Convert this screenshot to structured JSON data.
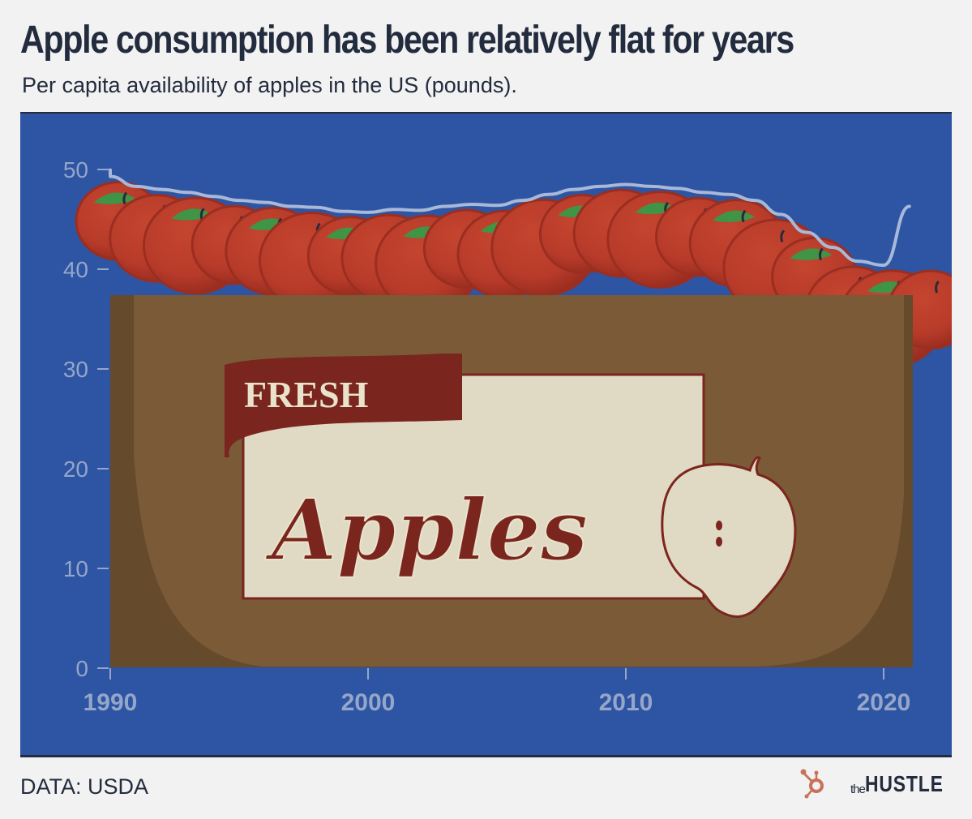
{
  "header": {
    "title": "Apple consumption has been relatively flat for years",
    "subtitle": "Per capita availability of apples in the US (pounds)."
  },
  "footer": {
    "source": "DATA: USDA",
    "brand_prefix": "the",
    "brand_name": "HUSTLE",
    "brand_icon": "hubspot-sprocket-icon"
  },
  "illustration": {
    "banner_text": "FRESH",
    "label_text": "Apples",
    "description": "Crate of red apples with green leaves; line traces top of pile"
  },
  "colors": {
    "background": "#f1f2f1",
    "plot_background": "#2d55a3",
    "line": "#a8b8d8",
    "axis_text": "#95a6c9",
    "title_text": "#232b3e",
    "crate": "#7a5a37",
    "crate_shadow": "#664a2c",
    "apple": "#b83b2a",
    "apple_shadow": "#9b2e20",
    "leaf": "#3f9446",
    "label_bg": "#e0dac4",
    "label_red": "#7a251d",
    "brand_orange": "#c9725a"
  },
  "chart_data": {
    "type": "line",
    "title": "Apple consumption has been relatively flat for years",
    "subtitle": "Per capita availability of apples in the US (pounds).",
    "xlabel": "",
    "ylabel": "",
    "x": [
      1990,
      1991,
      1992,
      1993,
      1994,
      1995,
      1996,
      1997,
      1998,
      1999,
      2000,
      2001,
      2002,
      2003,
      2004,
      2005,
      2006,
      2007,
      2008,
      2009,
      2010,
      2011,
      2012,
      2013,
      2014,
      2015,
      2016,
      2017,
      2018,
      2019,
      2020,
      2021
    ],
    "series": [
      {
        "name": "Per capita apple availability (lbs)",
        "values": [
          49.3,
          48.3,
          48.0,
          47.7,
          47.3,
          46.9,
          46.7,
          46.3,
          46.2,
          45.8,
          45.7,
          46.0,
          45.9,
          46.3,
          46.5,
          46.4,
          46.9,
          47.5,
          48.0,
          48.3,
          48.5,
          48.3,
          48.1,
          47.7,
          47.5,
          46.9,
          45.5,
          43.7,
          42.2,
          40.8,
          40.4,
          46.3
        ]
      }
    ],
    "x_ticks": [
      "1990",
      "2000",
      "2010",
      "2020"
    ],
    "y_ticks": [
      "0",
      "10",
      "20",
      "30",
      "40",
      "50"
    ],
    "xlim": [
      1990,
      2021
    ],
    "ylim": [
      0,
      50
    ],
    "grid": false,
    "legend": "none",
    "source": "DATA: USDA"
  }
}
